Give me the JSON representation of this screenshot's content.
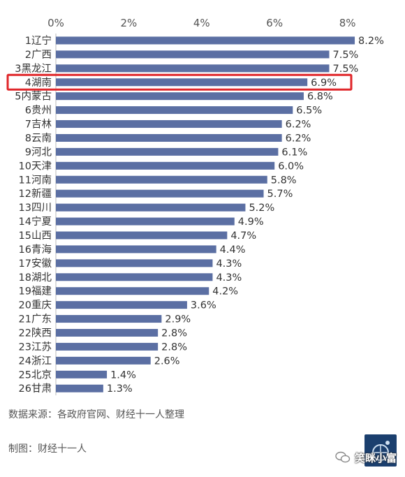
{
  "chart_data": {
    "type": "bar",
    "orientation": "horizontal",
    "x_ticks": [
      "0%",
      "2%",
      "4%",
      "6%",
      "8%"
    ],
    "xlim": [
      0,
      8.6
    ],
    "categories": [
      "1辽宁",
      "2广西",
      "3黑龙江",
      "4湖南",
      "5内蒙古",
      "6贵州",
      "7吉林",
      "8云南",
      "9河北",
      "10天津",
      "11河南",
      "12新疆",
      "13四川",
      "14宁夏",
      "15山西",
      "16青海",
      "17安徽",
      "18湖北",
      "19福建",
      "20重庆",
      "21广东",
      "22陕西",
      "23江苏",
      "24浙江",
      "25北京",
      "26甘肃"
    ],
    "values": [
      8.2,
      7.5,
      7.5,
      6.9,
      6.8,
      6.5,
      6.2,
      6.2,
      6.1,
      6.0,
      5.8,
      5.7,
      5.2,
      4.9,
      4.7,
      4.4,
      4.3,
      4.3,
      4.2,
      3.6,
      2.9,
      2.8,
      2.8,
      2.6,
      1.4,
      1.3
    ],
    "value_labels": [
      "8.2%",
      "7.5%",
      "7.5%",
      "6.9%",
      "6.8%",
      "6.5%",
      "6.2%",
      "6.2%",
      "6.1%",
      "6.0%",
      "5.8%",
      "5.7%",
      "5.2%",
      "4.9%",
      "4.7%",
      "4.4%",
      "4.3%",
      "4.3%",
      "4.2%",
      "3.6%",
      "2.9%",
      "2.8%",
      "2.8%",
      "2.6%",
      "1.4%",
      "1.3%"
    ],
    "highlighted_index": 3,
    "bar_color": "#5b6fa3",
    "highlight_color": "#e0262a",
    "grid": false
  },
  "source": "数据来源：各政府官网、财经十一人整理",
  "maker": "制图：财经十一人",
  "watermark": "笑眯小富"
}
